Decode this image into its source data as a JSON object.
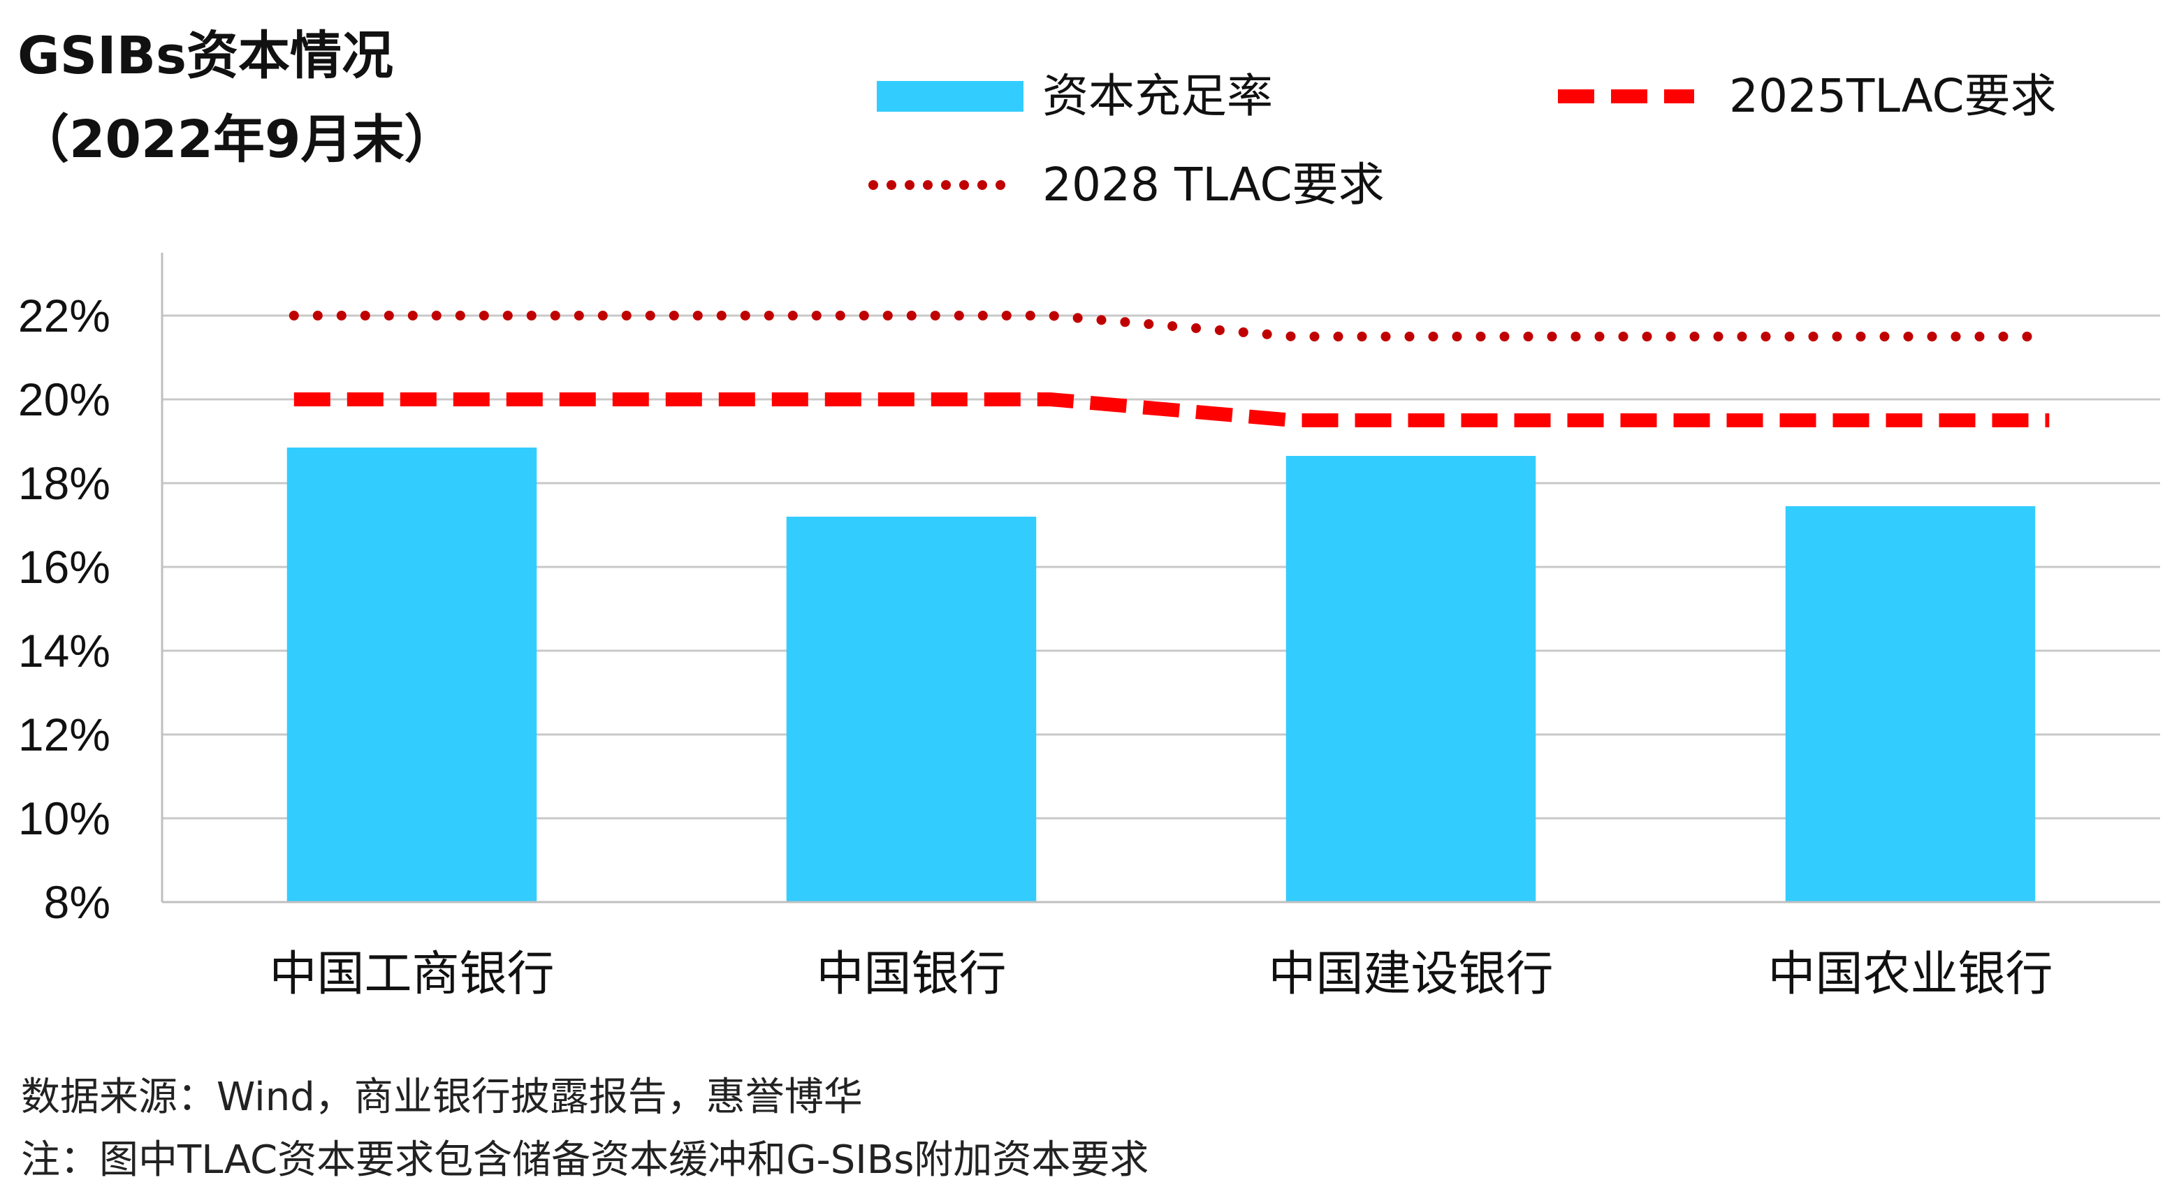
{
  "chart_data": {
    "type": "bar",
    "title": "GSIBs资本情况",
    "subtitle": "（2022年9月末）",
    "categories": [
      "中国工商银行",
      "中国银行",
      "中国建设银行",
      "中国农业银行"
    ],
    "series": [
      {
        "name": "资本充足率",
        "kind": "bar",
        "color": "#33CCFF",
        "values": [
          18.85,
          17.2,
          18.65,
          17.45
        ]
      },
      {
        "name": "2025TLAC要求",
        "kind": "line",
        "style": "dashed",
        "color": "#FF0000",
        "values": [
          20.0,
          20.0,
          19.5,
          19.5
        ]
      },
      {
        "name": "2028 TLAC要求",
        "kind": "line",
        "style": "dotted",
        "color": "#C00000",
        "values": [
          22.0,
          22.0,
          21.5,
          21.5
        ]
      }
    ],
    "y_ticks": [
      "8%",
      "10%",
      "12%",
      "14%",
      "16%",
      "18%",
      "20%",
      "22%"
    ],
    "ylim": [
      8,
      22
    ],
    "grid": true,
    "legend_position": "top",
    "xlabel": "",
    "ylabel": ""
  },
  "notes": {
    "source": "数据来源：Wind，商业银行披露报告，惠誉博华",
    "note": "注：图中TLAC资本要求包含储备资本缓冲和G-SIBs附加资本要求"
  }
}
